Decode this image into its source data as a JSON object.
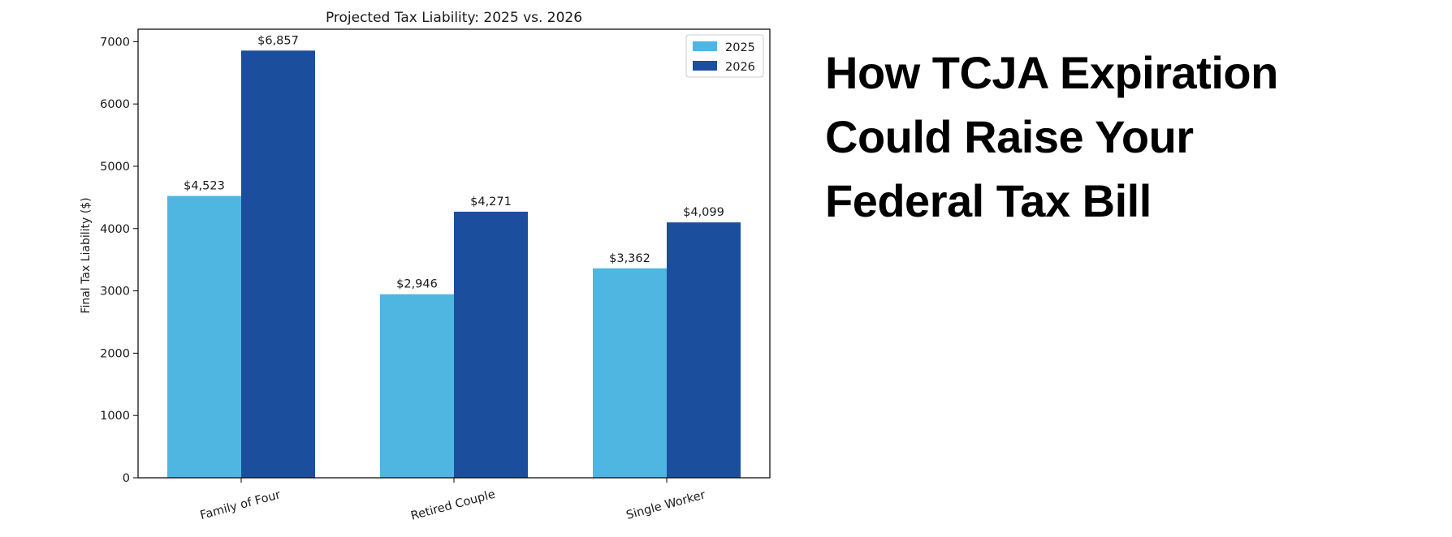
{
  "headline": {
    "lines": [
      "How TCJA Expiration",
      "Could Raise Your",
      "Federal Tax Bill"
    ]
  },
  "colors": {
    "2025": "#4fb6e2",
    "2026": "#1b4f9e"
  },
  "chart_data": {
    "type": "bar",
    "title": "Projected Tax Liability: 2025 vs. 2026",
    "xlabel": "",
    "ylabel": "Final Tax Liability ($)",
    "categories": [
      "Family of Four",
      "Retired Couple",
      "Single Worker"
    ],
    "series": [
      {
        "name": "2025",
        "values": [
          4523,
          2946,
          3362
        ],
        "labels": [
          "$4,523",
          "$2,946",
          "$3,362"
        ]
      },
      {
        "name": "2026",
        "values": [
          6857,
          4271,
          4099
        ],
        "labels": [
          "$6,857",
          "$4,271",
          "$4,099"
        ]
      }
    ],
    "ylim": [
      0,
      7200
    ],
    "yticks": [
      "0",
      "1000",
      "2000",
      "3000",
      "4000",
      "5000",
      "6000",
      "7000"
    ],
    "legend": "top-right",
    "grid": false
  }
}
